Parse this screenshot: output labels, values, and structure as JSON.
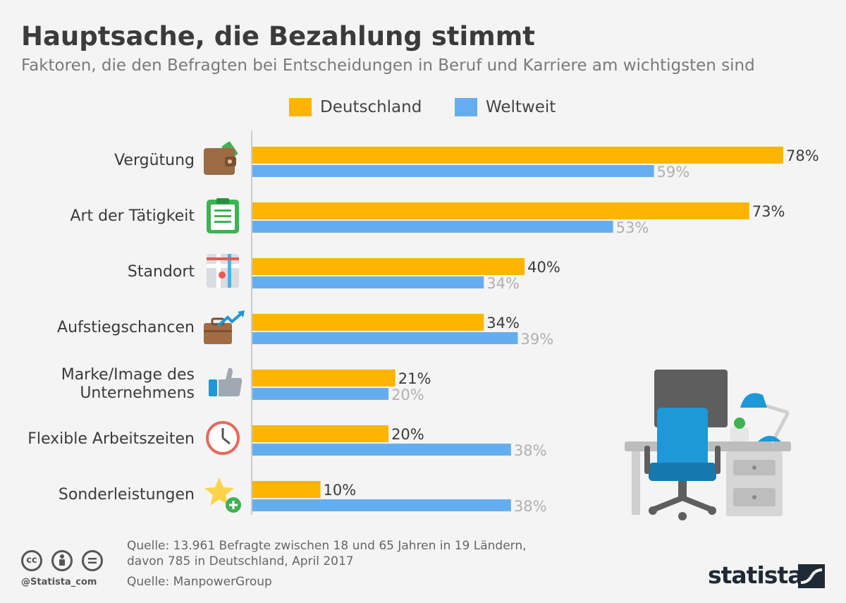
{
  "header": {
    "title": "Hauptsache, die Bezahlung stimmt",
    "subtitle": "Faktoren, die den Befragten bei Entscheidungen in Beruf und Karriere am wichtigsten sind"
  },
  "colors": {
    "deutschland": "#ffb400",
    "weltweit": "#64aef0",
    "axis": "#bdbdbd"
  },
  "chart_data": {
    "type": "bar",
    "orientation": "horizontal",
    "categories": [
      "Vergütung",
      "Art der Tätigkeit",
      "Standort",
      "Aufstiegschancen",
      "Marke/Image des Unternehmens",
      "Flexible Arbeitszeiten",
      "Sonderleistungen"
    ],
    "category_lines": [
      [
        "Vergütung"
      ],
      [
        "Art der Tätigkeit"
      ],
      [
        "Standort"
      ],
      [
        "Aufstiegschancen"
      ],
      [
        "Marke/Image des",
        "Unternehmens"
      ],
      [
        "Flexible Arbeitszeiten"
      ],
      [
        "Sonderleistungen"
      ]
    ],
    "icons": [
      "wallet-icon",
      "clipboard-icon",
      "map-pin-icon",
      "briefcase-growth-icon",
      "thumbs-up-icon",
      "clock-icon",
      "star-plus-icon"
    ],
    "series": [
      {
        "name": "Deutschland",
        "values": [
          78,
          73,
          40,
          34,
          21,
          20,
          10
        ],
        "labels": [
          "78%",
          "73%",
          "40%",
          "34%",
          "21%",
          "20%",
          "10%"
        ]
      },
      {
        "name": "Weltweit",
        "values": [
          59,
          53,
          34,
          39,
          20,
          38,
          38
        ],
        "labels": [
          "59%",
          "53%",
          "34%",
          "39%",
          "20%",
          "38%",
          "38%"
        ]
      }
    ],
    "xlim": [
      0,
      78
    ],
    "legend": "top-center",
    "grid": false
  },
  "footer": {
    "source_line1": "Quelle: 13.961 Befragte zwischen 18 und 65 Jahren in 19 Ländern,",
    "source_line2": "davon 785 in Deutschland, April 2017",
    "source_line3": "Quelle: ManpowerGroup",
    "handle": "@Statista_com",
    "brand": "statista"
  }
}
